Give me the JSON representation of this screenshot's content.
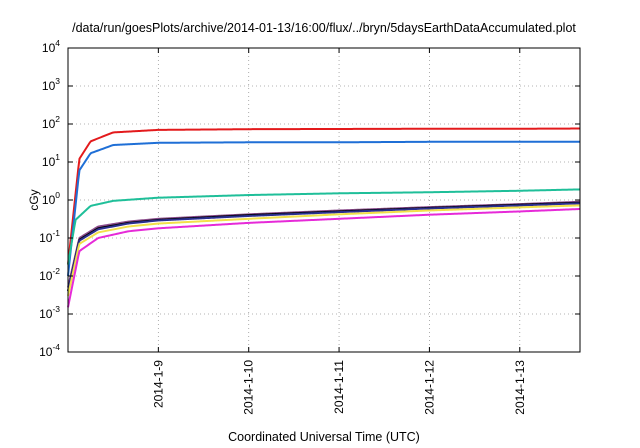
{
  "chart_data": {
    "type": "line",
    "title": "/data/run/goesPlots/archive/2014-01-13/16:00/flux/../bryn/5daysEarthDataAccumulated.plot",
    "xlabel": "Coordinated Universal Time (UTC)",
    "ylabel": "cGy",
    "y_scale": "log",
    "ylim": [
      0.0001,
      10000
    ],
    "y_ticks": [
      {
        "value": 0.0001,
        "base": "10",
        "exp": "-4"
      },
      {
        "value": 0.001,
        "base": "10",
        "exp": "-3"
      },
      {
        "value": 0.01,
        "base": "10",
        "exp": "-2"
      },
      {
        "value": 0.1,
        "base": "10",
        "exp": "-1"
      },
      {
        "value": 1,
        "base": "10",
        "exp": "0"
      },
      {
        "value": 10,
        "base": "10",
        "exp": "1"
      },
      {
        "value": 100,
        "base": "10",
        "exp": "2"
      },
      {
        "value": 1000,
        "base": "10",
        "exp": "3"
      },
      {
        "value": 10000,
        "base": "10",
        "exp": "4"
      }
    ],
    "x_ticks": [
      "2014-1-9",
      "2014-1-10",
      "2014-1-11",
      "2014-1-12",
      "2014-1-13"
    ],
    "xlim": [
      "2014-01-08 00:00",
      "2014-01-13 16:00"
    ],
    "grid": true,
    "series": [
      {
        "color": "#e31a1c",
        "x": [
          "2014-01-08 00:00",
          "2014-01-08 03:00",
          "2014-01-08 06:00",
          "2014-01-08 12:00",
          "2014-01-09 00:00",
          "2014-01-10 00:00",
          "2014-01-11 00:00",
          "2014-01-12 00:00",
          "2014-01-13 00:00",
          "2014-01-13 16:00"
        ],
        "y": [
          0.02,
          12,
          35,
          60,
          70,
          73,
          74,
          75,
          75,
          76
        ]
      },
      {
        "color": "#1f6fd6",
        "x": [
          "2014-01-08 00:00",
          "2014-01-08 03:00",
          "2014-01-08 06:00",
          "2014-01-08 12:00",
          "2014-01-09 00:00",
          "2014-01-10 00:00",
          "2014-01-11 00:00",
          "2014-01-12 00:00",
          "2014-01-13 00:00",
          "2014-01-13 16:00"
        ],
        "y": [
          0.01,
          6,
          17,
          28,
          32,
          33,
          33,
          34,
          34,
          34
        ]
      },
      {
        "color": "#1fbf99",
        "x": [
          "2014-01-08 00:00",
          "2014-01-08 02:00",
          "2014-01-08 06:00",
          "2014-01-08 12:00",
          "2014-01-09 00:00",
          "2014-01-10 00:00",
          "2014-01-11 00:00",
          "2014-01-12 00:00",
          "2014-01-13 00:00",
          "2014-01-13 16:00"
        ],
        "y": [
          0.02,
          0.3,
          0.7,
          0.95,
          1.15,
          1.35,
          1.5,
          1.6,
          1.75,
          1.9
        ]
      },
      {
        "color": "#8b4c8c",
        "x": [
          "2014-01-08 00:00",
          "2014-01-08 03:00",
          "2014-01-08 08:00",
          "2014-01-08 16:00",
          "2014-01-09 00:00",
          "2014-01-10 00:00",
          "2014-01-11 00:00",
          "2014-01-12 00:00",
          "2014-01-13 00:00",
          "2014-01-13 16:00"
        ],
        "y": [
          0.005,
          0.1,
          0.2,
          0.27,
          0.32,
          0.42,
          0.53,
          0.65,
          0.78,
          0.9
        ]
      },
      {
        "color": "#000000",
        "x": [
          "2014-01-08 00:00",
          "2014-01-08 03:00",
          "2014-01-08 08:00",
          "2014-01-08 16:00",
          "2014-01-09 00:00",
          "2014-01-10 00:00",
          "2014-01-11 00:00",
          "2014-01-12 00:00",
          "2014-01-13 00:00",
          "2014-01-13 16:00"
        ],
        "y": [
          0.004,
          0.09,
          0.18,
          0.25,
          0.3,
          0.4,
          0.5,
          0.62,
          0.75,
          0.85
        ]
      },
      {
        "color": "#2a2f8f",
        "x": [
          "2014-01-08 00:00",
          "2014-01-08 03:00",
          "2014-01-08 08:00",
          "2014-01-08 16:00",
          "2014-01-09 00:00",
          "2014-01-10 00:00",
          "2014-01-11 00:00",
          "2014-01-12 00:00",
          "2014-01-13 00:00",
          "2014-01-13 16:00"
        ],
        "y": [
          0.004,
          0.085,
          0.17,
          0.24,
          0.29,
          0.38,
          0.48,
          0.6,
          0.72,
          0.82
        ]
      },
      {
        "color": "#f2e04a",
        "x": [
          "2014-01-08 00:00",
          "2014-01-08 03:00",
          "2014-01-08 08:00",
          "2014-01-08 16:00",
          "2014-01-09 00:00",
          "2014-01-10 00:00",
          "2014-01-11 00:00",
          "2014-01-12 00:00",
          "2014-01-13 00:00",
          "2014-01-13 16:00"
        ],
        "y": [
          0.003,
          0.07,
          0.14,
          0.2,
          0.24,
          0.32,
          0.42,
          0.53,
          0.64,
          0.72
        ]
      },
      {
        "color": "#e62ad8",
        "x": [
          "2014-01-08 00:00",
          "2014-01-08 03:00",
          "2014-01-08 08:00",
          "2014-01-08 16:00",
          "2014-01-09 00:00",
          "2014-01-10 00:00",
          "2014-01-11 00:00",
          "2014-01-12 00:00",
          "2014-01-13 00:00",
          "2014-01-13 16:00"
        ],
        "y": [
          0.0015,
          0.045,
          0.1,
          0.15,
          0.18,
          0.25,
          0.32,
          0.41,
          0.5,
          0.58
        ]
      }
    ]
  }
}
